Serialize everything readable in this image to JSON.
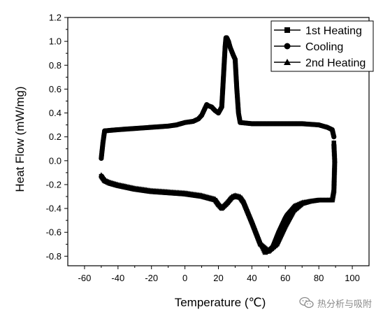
{
  "chart_data": {
    "type": "line",
    "xlabel": "Temperature (℃)",
    "ylabel": "Heat Flow (mW/mg)",
    "xlim": [
      -70,
      110
    ],
    "ylim": [
      -0.88,
      1.2
    ],
    "xticks": [
      -60,
      -40,
      -20,
      0,
      20,
      40,
      60,
      80,
      100
    ],
    "yticks": [
      -0.8,
      -0.6,
      -0.4,
      -0.2,
      0.0,
      0.2,
      0.4,
      0.6,
      0.8,
      1.0,
      1.2
    ],
    "ytick_labels": [
      "-0.8",
      "-0.6",
      "-0.4",
      "-0.2",
      "0.0",
      "0.2",
      "0.4",
      "0.6",
      "0.8",
      "1.0",
      "1.2"
    ],
    "grid": false,
    "legend_position": "top-right",
    "series": [
      {
        "name": "1st Heating",
        "marker": "square",
        "x": [
          -50,
          -48,
          -45,
          -40,
          -30,
          -20,
          -10,
          0,
          10,
          18,
          20,
          22,
          25,
          28,
          30,
          33,
          35,
          40,
          45,
          50,
          55,
          60,
          65,
          70,
          75,
          80,
          85,
          88,
          89,
          89.5,
          89
        ],
        "y": [
          -0.13,
          -0.17,
          -0.19,
          -0.21,
          -0.24,
          -0.26,
          -0.27,
          -0.28,
          -0.3,
          -0.33,
          -0.37,
          -0.4,
          -0.36,
          -0.31,
          -0.3,
          -0.31,
          -0.35,
          -0.52,
          -0.7,
          -0.76,
          -0.7,
          -0.55,
          -0.42,
          -0.36,
          -0.34,
          -0.33,
          -0.33,
          -0.33,
          -0.25,
          0.0,
          0.15
        ]
      },
      {
        "name": "Cooling",
        "marker": "circle",
        "x": [
          89,
          88,
          85,
          80,
          70,
          60,
          50,
          40,
          33,
          32,
          31,
          30,
          29,
          27,
          26,
          25,
          24.5,
          24,
          23,
          22,
          20,
          18,
          16,
          14,
          13,
          12,
          10,
          8,
          5,
          0,
          -5,
          -10,
          -20,
          -30,
          -40,
          -48,
          -49,
          -50
        ],
        "y": [
          0.2,
          0.26,
          0.28,
          0.3,
          0.31,
          0.31,
          0.31,
          0.31,
          0.32,
          0.4,
          0.6,
          0.85,
          0.88,
          0.95,
          1.0,
          1.03,
          1.03,
          0.95,
          0.7,
          0.45,
          0.4,
          0.42,
          0.45,
          0.46,
          0.47,
          0.44,
          0.38,
          0.35,
          0.33,
          0.32,
          0.3,
          0.29,
          0.28,
          0.27,
          0.26,
          0.25,
          0.15,
          0.02
        ]
      },
      {
        "name": "2nd Heating",
        "marker": "triangle",
        "x": [
          -50,
          -48,
          -45,
          -40,
          -30,
          -20,
          -10,
          0,
          10,
          18,
          20,
          22,
          25,
          28,
          30,
          33,
          35,
          40,
          45,
          48,
          52,
          56,
          60,
          65,
          70,
          75,
          80,
          85,
          88,
          89,
          89.5,
          89
        ],
        "y": [
          -0.12,
          -0.16,
          -0.18,
          -0.2,
          -0.23,
          -0.25,
          -0.26,
          -0.27,
          -0.29,
          -0.32,
          -0.36,
          -0.39,
          -0.35,
          -0.3,
          -0.29,
          -0.3,
          -0.34,
          -0.5,
          -0.68,
          -0.77,
          -0.72,
          -0.58,
          -0.46,
          -0.38,
          -0.35,
          -0.34,
          -0.33,
          -0.33,
          -0.33,
          -0.25,
          0.0,
          0.15
        ]
      }
    ]
  },
  "watermark": {
    "icon": "wechat-icon",
    "text": "热分析与吸附"
  }
}
